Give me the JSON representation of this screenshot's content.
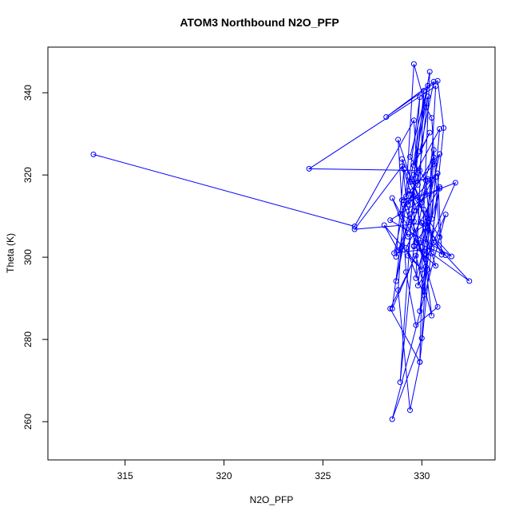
{
  "chart_data": {
    "type": "line",
    "title": "ATOM3 Northbound N2O_PFP",
    "xlabel": "N2O_PFP",
    "ylabel": "Theta (K)",
    "xlim": [
      311.1,
      333.7
    ],
    "ylim": [
      250.7,
      351.1
    ],
    "x_ticks": [
      315,
      320,
      325,
      330
    ],
    "y_ticks": [
      260,
      280,
      300,
      320,
      340
    ],
    "grid": false,
    "legend": "none",
    "series": [
      {
        "color": "#0000ff",
        "marker": "open-circle",
        "x": [
          313.4,
          326.6,
          329.6,
          329.8,
          330.3,
          329.6,
          330.4,
          329.9,
          330.6,
          328.2,
          330.8,
          331.1,
          329.9,
          329.4,
          328.8,
          329.1,
          330.2,
          330.5,
          329.7,
          328.4,
          329.9,
          330.1,
          330.4,
          329.4,
          330.7,
          329.9,
          330.9,
          329.2,
          330.1,
          330.7,
          324.3,
          329.9,
          329.3,
          330.8,
          331.0,
          329.1,
          328.7,
          330.5,
          329.8,
          330.3,
          329.2,
          331.7,
          330.1,
          330.6,
          329.6,
          328.9,
          330.6,
          330.0,
          328.5,
          331.2,
          330.2,
          328.5,
          329.3,
          330.3,
          326.6,
          329.0,
          330.5,
          332.4,
          330.6,
          329.5,
          330.9,
          330.5,
          329.7,
          331.2,
          330.3,
          328.5,
          329.9,
          328.9,
          329.6,
          329.6,
          330.3,
          329.4,
          330.2,
          330.5,
          328.6,
          329.3,
          330.0,
          329.0,
          329.2,
          329.6,
          330.2,
          330.5,
          330.9,
          329.5,
          328.7,
          329.4,
          330.8,
          329.7,
          329.2,
          328.8,
          329.5,
          330.3,
          329.6,
          330.7,
          330.0,
          331.5,
          328.4,
          330.9,
          329.7,
          330.1,
          329.3,
          330.0,
          328.1,
          328.8,
          329.6,
          330.2,
          329.0,
          330.6,
          330.9,
          329.9
        ],
        "y": [
          325.0,
          307.5,
          333.3,
          317.6,
          339.1,
          322.3,
          330.3,
          325.7,
          342.7,
          334.1,
          342.9,
          331.4,
          274.5,
          262.8,
          292.0,
          312.8,
          297.7,
          285.8,
          300.4,
          287.5,
          274.5,
          311.6,
          345.1,
          318.3,
          319.5,
          286.9,
          317.1,
          302.3,
          290.8,
          341.6,
          321.5,
          321.1,
          312.8,
          320.4,
          300.6,
          321.4,
          300.1,
          318.7,
          293.1,
          297.0,
          313.4,
          318.1,
          300.6,
          326.1,
          308.7,
          310.5,
          324.3,
          280.3,
          260.6,
          310.4,
          299.5,
          314.4,
          305.0,
          308.3,
          306.8,
          322.1,
          300.9,
          294.2,
          303.6,
          318.8,
          331.2,
          309.3,
          303.6,
          300.5,
          307.1,
          287.5,
          338.9,
          269.6,
          302.6,
          320.1,
          341.7,
          324.4,
          318.7,
          302.1,
          301.0,
          316.1,
          313.3,
          323.9,
          314.8,
          347.0,
          336.5,
          333.9,
          304.9,
          315.3,
          294.2,
          310.5,
          287.9,
          283.5,
          296.4,
          328.6,
          318.4,
          319.0,
          302.8,
          297.9,
          308.3,
          300.2,
          309.0,
          316.7,
          294.9,
          340.5,
          300.4,
          297.0,
          307.8,
          301.7,
          311.3,
          315.5,
          313.9,
          322.6,
          325.1,
          303.5
        ]
      }
    ]
  }
}
